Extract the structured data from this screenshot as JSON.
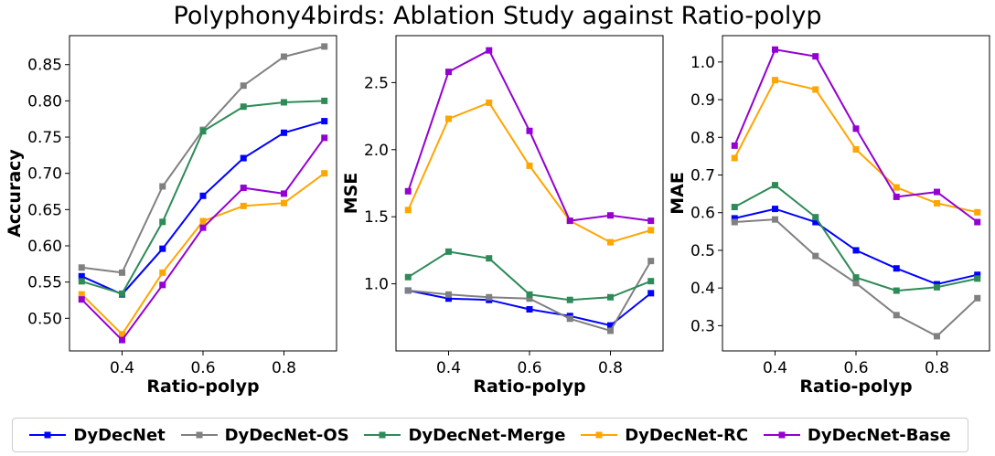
{
  "title": "Polyphony4birds: Ablation Study against Ratio-polyp",
  "chart_data": [
    {
      "type": "line",
      "xlabel": "Ratio-polyp",
      "ylabel": "Accuracy",
      "x": [
        0.3,
        0.4,
        0.5,
        0.6,
        0.7,
        0.8,
        0.9
      ],
      "xlim": [
        0.27,
        0.93
      ],
      "ylim": [
        0.455,
        0.89
      ],
      "xticks": [
        0.4,
        0.6,
        0.8
      ],
      "yticks": [
        0.5,
        0.55,
        0.6,
        0.65,
        0.7,
        0.75,
        0.8,
        0.85
      ],
      "ytick_labels": [
        "0.50",
        "0.55",
        "0.60",
        "0.65",
        "0.70",
        "0.75",
        "0.80",
        "0.85"
      ],
      "series": [
        {
          "name": "DyDecNet",
          "color": "#0000ff",
          "values": [
            0.558,
            0.533,
            0.596,
            0.669,
            0.721,
            0.756,
            0.772
          ]
        },
        {
          "name": "DyDecNet-OS",
          "color": "#808080",
          "values": [
            0.57,
            0.563,
            0.682,
            0.76,
            0.821,
            0.861,
            0.875
          ]
        },
        {
          "name": "DyDecNet-Merge",
          "color": "#2e8b57",
          "values": [
            0.551,
            0.534,
            0.633,
            0.758,
            0.792,
            0.798,
            0.8
          ]
        },
        {
          "name": "DyDecNet-RC",
          "color": "#ffa500",
          "values": [
            0.533,
            0.478,
            0.563,
            0.634,
            0.655,
            0.659,
            0.7
          ]
        },
        {
          "name": "DyDecNet-Base",
          "color": "#9400d3",
          "values": [
            0.526,
            0.47,
            0.546,
            0.625,
            0.68,
            0.672,
            0.749
          ]
        }
      ]
    },
    {
      "type": "line",
      "xlabel": "Ratio-polyp",
      "ylabel": "MSE",
      "x": [
        0.3,
        0.4,
        0.5,
        0.6,
        0.7,
        0.8,
        0.9
      ],
      "xlim": [
        0.27,
        0.93
      ],
      "ylim": [
        0.5,
        2.85
      ],
      "xticks": [
        0.4,
        0.6,
        0.8
      ],
      "yticks": [
        1.0,
        1.5,
        2.0,
        2.5
      ],
      "ytick_labels": [
        "1.0",
        "1.5",
        "2.0",
        "2.5"
      ],
      "series": [
        {
          "name": "DyDecNet",
          "color": "#0000ff",
          "values": [
            0.95,
            0.89,
            0.88,
            0.81,
            0.76,
            0.69,
            0.93
          ]
        },
        {
          "name": "DyDecNet-OS",
          "color": "#808080",
          "values": [
            0.95,
            0.92,
            0.9,
            0.89,
            0.74,
            0.65,
            1.17
          ]
        },
        {
          "name": "DyDecNet-Merge",
          "color": "#2e8b57",
          "values": [
            1.05,
            1.24,
            1.19,
            0.92,
            0.88,
            0.9,
            1.02
          ]
        },
        {
          "name": "DyDecNet-RC",
          "color": "#ffa500",
          "values": [
            1.55,
            2.23,
            2.35,
            1.88,
            1.47,
            1.31,
            1.4
          ]
        },
        {
          "name": "DyDecNet-Base",
          "color": "#9400d3",
          "values": [
            1.69,
            2.58,
            2.74,
            2.14,
            1.47,
            1.51,
            1.47
          ]
        }
      ]
    },
    {
      "type": "line",
      "xlabel": "Ratio-polyp",
      "ylabel": "MAE",
      "x": [
        0.3,
        0.4,
        0.5,
        0.6,
        0.7,
        0.8,
        0.9
      ],
      "xlim": [
        0.27,
        0.93
      ],
      "ylim": [
        0.233,
        1.07
      ],
      "xticks": [
        0.4,
        0.6,
        0.8
      ],
      "yticks": [
        0.3,
        0.4,
        0.5,
        0.6,
        0.7,
        0.8,
        0.9,
        1.0
      ],
      "ytick_labels": [
        "0.3",
        "0.4",
        "0.5",
        "0.6",
        "0.7",
        "0.8",
        "0.9",
        "1.0"
      ],
      "series": [
        {
          "name": "DyDecNet",
          "color": "#0000ff",
          "values": [
            0.585,
            0.61,
            0.575,
            0.5,
            0.452,
            0.41,
            0.435
          ]
        },
        {
          "name": "DyDecNet-OS",
          "color": "#808080",
          "values": [
            0.575,
            0.582,
            0.485,
            0.413,
            0.328,
            0.272,
            0.373
          ]
        },
        {
          "name": "DyDecNet-Merge",
          "color": "#2e8b57",
          "values": [
            0.615,
            0.673,
            0.588,
            0.428,
            0.393,
            0.402,
            0.425
          ]
        },
        {
          "name": "DyDecNet-RC",
          "color": "#ffa500",
          "values": [
            0.745,
            0.952,
            0.927,
            0.768,
            0.667,
            0.625,
            0.601
          ]
        },
        {
          "name": "DyDecNet-Base",
          "color": "#9400d3",
          "values": [
            0.778,
            1.033,
            1.015,
            0.823,
            0.642,
            0.655,
            0.575
          ]
        }
      ]
    }
  ],
  "legend": [
    {
      "label": "DyDecNet",
      "color": "#0000ff"
    },
    {
      "label": "DyDecNet-OS",
      "color": "#808080"
    },
    {
      "label": "DyDecNet-Merge",
      "color": "#2e8b57"
    },
    {
      "label": "DyDecNet-RC",
      "color": "#ffa500"
    },
    {
      "label": "DyDecNet-Base",
      "color": "#9400d3"
    }
  ]
}
